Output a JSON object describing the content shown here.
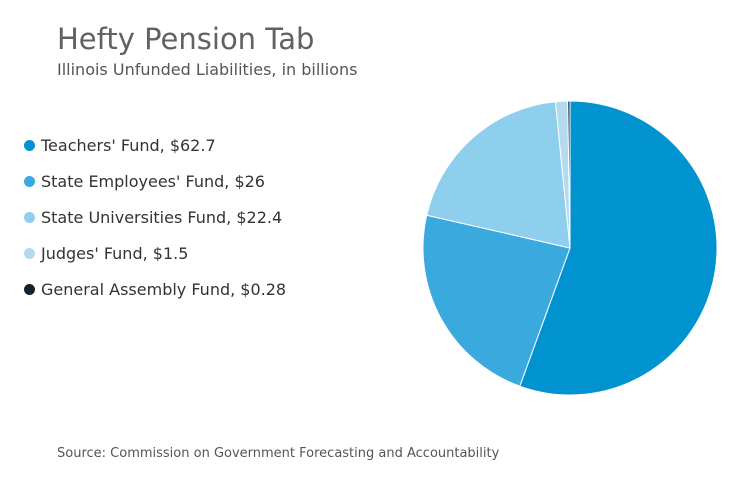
{
  "chart_data": {
    "type": "pie",
    "title": "Hefty Pension Tab",
    "subtitle": "Illinois Unfunded Liabilities, in billions",
    "legend_position": "left",
    "slices": [
      {
        "label": "Teachers' Fund, $62.7",
        "value": 62.7,
        "color": "#0093d0"
      },
      {
        "label": "State Employees' Fund, $26",
        "value": 26,
        "color": "#39a9de"
      },
      {
        "label": "State Universities Fund, $22.4",
        "value": 22.4,
        "color": "#8dcfed"
      },
      {
        "label": "Judges' Fund, $1.5",
        "value": 1.5,
        "color": "#b3dbed"
      },
      {
        "label": "General Assembly Fund, $0.28",
        "value": 0.28,
        "color": "#14222b"
      }
    ],
    "source": "Source: Commission on Government Forecasting and Accountability"
  }
}
